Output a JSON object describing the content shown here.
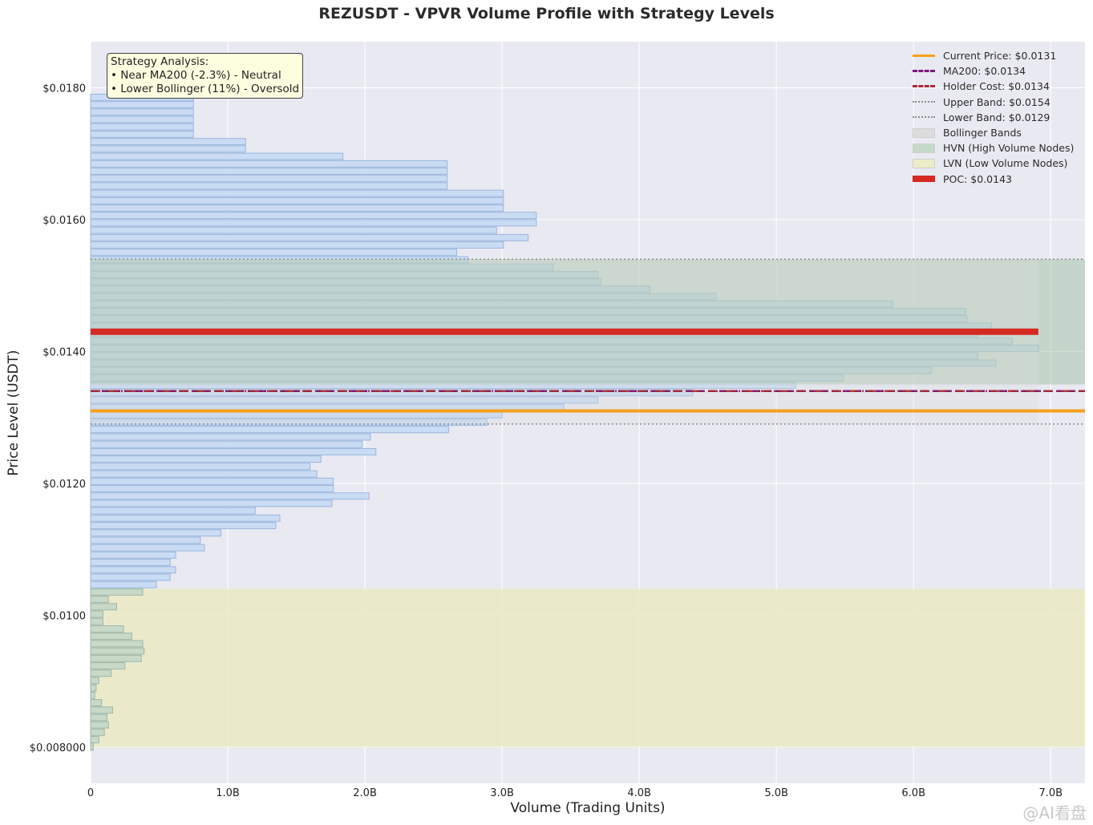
{
  "chart_data": {
    "type": "bar",
    "orientation": "horizontal",
    "title": "REZUSDT - VPVR Volume Profile with Strategy Levels",
    "xlabel": "Volume (Trading Units)",
    "ylabel": "Price Level (USDT)",
    "xlim": [
      0,
      7.25
    ],
    "ylim": [
      0.00745,
      0.0187
    ],
    "x_unit": "B",
    "x_ticks": [
      {
        "value": 0,
        "label": "0"
      },
      {
        "value": 1,
        "label": "1.0B"
      },
      {
        "value": 2,
        "label": "2.0B"
      },
      {
        "value": 3,
        "label": "3.0B"
      },
      {
        "value": 4,
        "label": "4.0B"
      },
      {
        "value": 5,
        "label": "5.0B"
      },
      {
        "value": 6,
        "label": "6.0B"
      },
      {
        "value": 7,
        "label": "7.0B"
      }
    ],
    "y_ticks": [
      {
        "value": 0.008,
        "label": "$0.008000"
      },
      {
        "value": 0.01,
        "label": "$0.0100"
      },
      {
        "value": 0.012,
        "label": "$0.0120"
      },
      {
        "value": 0.014,
        "label": "$0.0140"
      },
      {
        "value": 0.016,
        "label": "$0.0160"
      },
      {
        "value": 0.018,
        "label": "$0.0180"
      }
    ],
    "grid": true,
    "bin_start_price": 0.008,
    "bin_step": 0.000112,
    "volumes": [
      0.02,
      0.06,
      0.1,
      0.13,
      0.12,
      0.16,
      0.08,
      0.03,
      0.04,
      0.06,
      0.15,
      0.25,
      0.37,
      0.39,
      0.38,
      0.3,
      0.24,
      0.09,
      0.09,
      0.19,
      0.13,
      0.38,
      0.48,
      0.58,
      0.62,
      0.58,
      0.62,
      0.83,
      0.8,
      0.95,
      1.35,
      1.38,
      1.2,
      1.76,
      2.03,
      1.77,
      1.77,
      1.65,
      1.6,
      1.68,
      2.08,
      1.98,
      2.04,
      2.61,
      2.89,
      3.0,
      3.45,
      3.7,
      4.39,
      5.14,
      5.49,
      6.13,
      6.6,
      6.47,
      6.91,
      6.72,
      6.47,
      6.57,
      6.39,
      6.38,
      5.85,
      4.56,
      4.08,
      3.72,
      3.7,
      3.37,
      2.75,
      2.67,
      3.01,
      3.19,
      2.96,
      3.25,
      3.25,
      3.01,
      3.01,
      3.01,
      2.6,
      2.6,
      2.6,
      2.6,
      1.84,
      1.13,
      1.13,
      0.75,
      0.75,
      0.75,
      0.75,
      0.75,
      0.75
    ],
    "levels": {
      "current_price": 0.0131,
      "ma200": 0.0134,
      "holder_cost": 0.0134,
      "upper_band": 0.0154,
      "lower_band": 0.0129,
      "poc": 0.0143
    },
    "zones": {
      "hvn": [
        0.0135,
        0.0154
      ],
      "lvn": [
        0.008,
        0.0104
      ],
      "bollinger": [
        0.0129,
        0.0154
      ]
    },
    "legend_position": "upper right",
    "legend": [
      {
        "label": "Current Price: $0.0131",
        "style": "solid-line",
        "color": "#f5a11c"
      },
      {
        "label": "MA200: $0.0134",
        "style": "dashed-line",
        "color": "#7b1a7b"
      },
      {
        "label": "Holder Cost: $0.0134",
        "style": "dashdot-line",
        "color": "#a62a36"
      },
      {
        "label": "Upper Band: $0.0154",
        "style": "dotted-line",
        "color": "#8c8c8c"
      },
      {
        "label": "Lower Band: $0.0129",
        "style": "dotted-line",
        "color": "#8c8c8c"
      },
      {
        "label": "Bollinger Bands",
        "style": "patch",
        "color": "#dcdcdc"
      },
      {
        "label": "HVN (High Volume Nodes)",
        "style": "patch",
        "color": "#c4d9c8"
      },
      {
        "label": "LVN (Low Volume Nodes)",
        "style": "patch",
        "color": "#ececc6"
      },
      {
        "label": "POC: $0.0143",
        "style": "thick-line",
        "color": "#d42a22"
      }
    ],
    "annotation": {
      "title": "Strategy Analysis:",
      "lines": [
        "• Near MA200 (-2.3%) - Neutral",
        "• Lower Bollinger (11%) - Oversold"
      ]
    }
  },
  "colors": {
    "plot_bg": "#e9e9f2",
    "bar_fill": "#c9dcf4",
    "bar_stroke": "#9ab6dd",
    "lvn_bar_fill": "#c8d9c8",
    "lvn_bar_stroke": "#9fb6a8",
    "hvn_zone": "#9fc3a4",
    "lvn_zone": "#eaeac4",
    "bollinger_zone": "#d9d9d9"
  },
  "watermark": "@AI看盘"
}
